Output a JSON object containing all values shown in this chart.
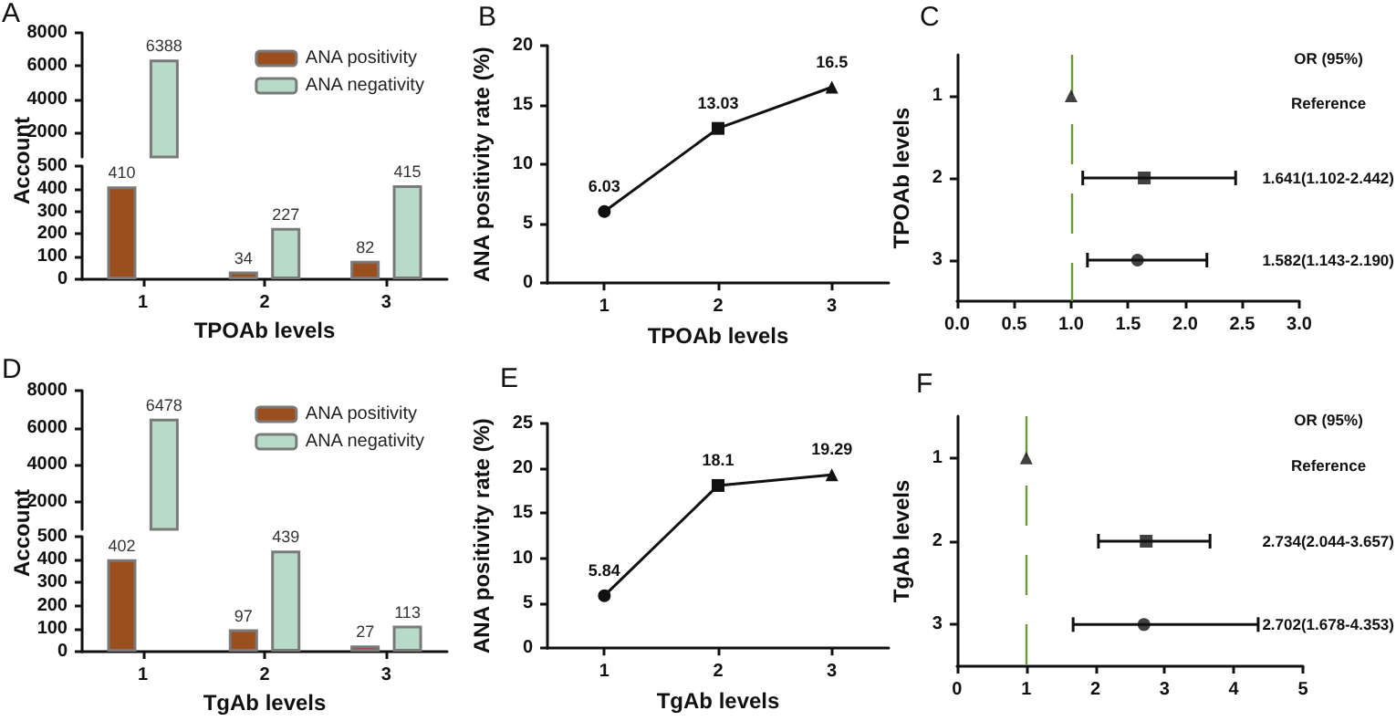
{
  "chart_data": [
    {
      "type": "bar",
      "title": "A",
      "categories": [
        "1",
        "2",
        "3"
      ],
      "tick_labels": "y",
      "ylim": [
        500,
        8000
      ],
      "yticks": [
        2000,
        4000,
        6000,
        8000
      ],
      "legend": "top right",
      "series": [
        {
          "name": "ANA positivity",
          "color": "#9b4f1f",
          "values": [
            null,
            null,
            null
          ]
        },
        {
          "name": "ANA negativity",
          "color": "#b8dac8",
          "values": [
            6388,
            null,
            null
          ],
          "value_labels": [
            "6388",
            null,
            null
          ]
        }
      ]
    },
    {
      "type": "bar",
      "categories": [
        "1",
        "2",
        "3"
      ],
      "xlabel": "TPOAb levels",
      "ylabel": "Account",
      "ylim": [
        0,
        500
      ],
      "yticks": [
        0,
        100,
        200,
        300,
        400,
        500
      ],
      "series": [
        {
          "color": "#9b4f1f",
          "values": [
            410,
            34,
            82
          ],
          "value_labels": [
            "410",
            "34",
            "82"
          ]
        },
        {
          "color": "#b8dac8",
          "values": [
            null,
            227,
            415
          ],
          "value_labels": [
            null,
            "227",
            "415"
          ]
        }
      ]
    },
    {
      "type": "line",
      "title": "B",
      "categories": [
        "1",
        "2",
        "3"
      ],
      "values": [
        6.03,
        13.03,
        16.5
      ],
      "color": "#111111",
      "marker": [
        "circle",
        "square",
        "triangle"
      ],
      "data_labels": true,
      "xlabel": "TPOAb levels",
      "ylabel": "ANA positivity rate (%)",
      "ylim": [
        0,
        20
      ],
      "yticks": [
        0,
        5,
        10,
        15,
        20
      ]
    },
    {
      "type": "scatter",
      "orientation": "horizontal",
      "title": "C",
      "categories": [
        "1",
        "2",
        "3"
      ],
      "values": [
        1,
        1.641,
        1.582
      ],
      "errors": [
        null,
        [
          1.102,
          2.442
        ],
        [
          1.143,
          2.19
        ]
      ],
      "color": "#111111",
      "marker": [
        "triangle",
        "square",
        "circle"
      ],
      "ylabel": "TPOAb levels",
      "xlim": [
        0,
        3
      ],
      "xticks": [
        {
          "value": 0,
          "label": "0.0"
        },
        {
          "value": 0.5,
          "label": "0.5"
        },
        {
          "value": 1,
          "label": "1.0"
        },
        {
          "value": 1.5,
          "label": "1.5"
        },
        {
          "value": 2,
          "label": "2.0"
        },
        {
          "value": 2.5,
          "label": "2.5"
        },
        {
          "value": 3,
          "label": "3.0"
        }
      ],
      "ref_lines": [
        {
          "axis": "x",
          "value": 1,
          "color": "#6a9a3c",
          "line_style": "dashed"
        }
      ],
      "annotations": [
        "OR (95%)",
        "Reference",
        "1.641(1.102-2.442)",
        "1.582(1.143-2.190)"
      ]
    },
    {
      "type": "bar",
      "title": "D",
      "categories": [
        "1",
        "2",
        "3"
      ],
      "tick_labels": "y",
      "ylim": [
        500,
        8000
      ],
      "yticks": [
        2000,
        4000,
        6000,
        8000
      ],
      "legend": "top right",
      "series": [
        {
          "name": "ANA positivity",
          "color": "#9b4f1f",
          "values": [
            null,
            null,
            null
          ]
        },
        {
          "name": "ANA negativity",
          "color": "#b8dac8",
          "values": [
            6478,
            null,
            null
          ],
          "value_labels": [
            "6478",
            null,
            null
          ]
        }
      ]
    },
    {
      "type": "bar",
      "categories": [
        "1",
        "2",
        "3"
      ],
      "xlabel": "TgAb levels",
      "ylabel": "Account",
      "ylim": [
        0,
        500
      ],
      "yticks": [
        0,
        100,
        200,
        300,
        400,
        500
      ],
      "series": [
        {
          "color": "#9b4f1f",
          "values": [
            402,
            97,
            27
          ],
          "value_labels": [
            "402",
            "97",
            "27"
          ]
        },
        {
          "color": "#b8dac8",
          "values": [
            null,
            439,
            113
          ],
          "value_labels": [
            null,
            "439",
            "113"
          ]
        }
      ]
    },
    {
      "type": "line",
      "title": "E",
      "categories": [
        "1",
        "2",
        "3"
      ],
      "values": [
        5.84,
        18.1,
        19.29
      ],
      "color": "#111111",
      "marker": [
        "circle",
        "square",
        "triangle"
      ],
      "data_labels": true,
      "xlabel": "TgAb levels",
      "ylabel": "ANA positivity rate (%)",
      "ylim": [
        0,
        25
      ],
      "yticks": [
        0,
        5,
        10,
        15,
        20,
        25
      ]
    },
    {
      "type": "scatter",
      "orientation": "horizontal",
      "title": "F",
      "categories": [
        "1",
        "2",
        "3"
      ],
      "values": [
        1,
        2.734,
        2.702
      ],
      "errors": [
        null,
        [
          2.044,
          3.657
        ],
        [
          1.678,
          4.353
        ]
      ],
      "color": "#111111",
      "marker": [
        "triangle",
        "square",
        "circle"
      ],
      "ylabel": "TgAb levels",
      "xlim": [
        0,
        5
      ],
      "xticks": [
        0,
        1,
        2,
        3,
        4,
        5
      ],
      "ref_lines": [
        {
          "axis": "x",
          "value": 1,
          "color": "#6a9a3c",
          "line_style": "dashed"
        }
      ],
      "annotations": [
        "OR (95%)",
        "Reference",
        "2.734(2.044-3.657)",
        "2.702(1.678-4.353)"
      ]
    }
  ]
}
